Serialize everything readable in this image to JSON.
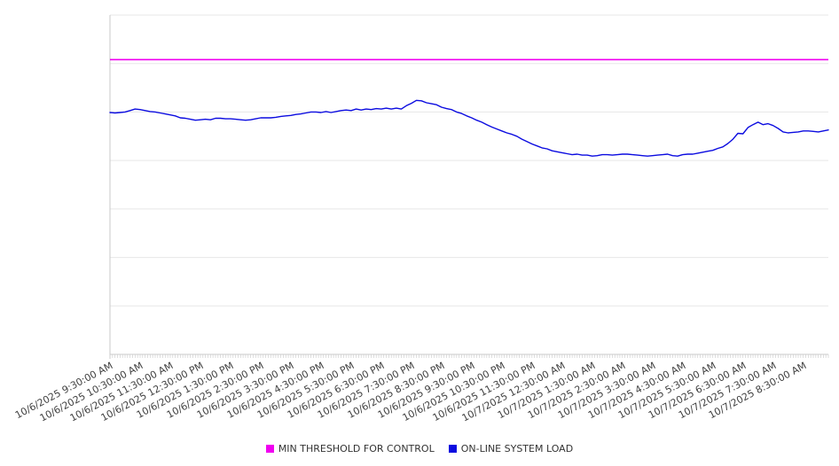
{
  "chart_data": {
    "type": "line",
    "title": "",
    "xlabel": "",
    "ylabel": "",
    "y_axis": {
      "labels_visible": false,
      "min": 0,
      "max": 700,
      "gridline_interval": 100,
      "grid": true
    },
    "x_axis": {
      "tick_labels": [
        "10/6/2025 9:30:00 AM",
        "10/6/2025 10:30:00 AM",
        "10/6/2025 11:30:00 AM",
        "10/6/2025 12:30:00 PM",
        "10/6/2025 1:30:00 PM",
        "10/6/2025 2:30:00 PM",
        "10/6/2025 3:30:00 PM",
        "10/6/2025 4:30:00 PM",
        "10/6/2025 5:30:00 PM",
        "10/6/2025 6:30:00 PM",
        "10/6/2025 7:30:00 PM",
        "10/6/2025 8:30:00 PM",
        "10/6/2025 9:30:00 PM",
        "10/6/2025 10:30:00 PM",
        "10/6/2025 11:30:00 PM",
        "10/7/2025 12:30:00 AM",
        "10/7/2025 1:30:00 AM",
        "10/7/2025 2:30:00 AM",
        "10/7/2025 3:30:00 AM",
        "10/7/2025 4:30:00 AM",
        "10/7/2025 5:30:00 AM",
        "10/7/2025 6:30:00 AM",
        "10/7/2025 7:30:00 AM",
        "10/7/2025 8:30:00 AM"
      ],
      "minor_tick_intervals": 286
    },
    "series": [
      {
        "name": "MIN THRESHOLD FOR CONTROL",
        "type": "constant",
        "color": "#F000F0",
        "value": 608
      },
      {
        "name": "ON-LINE SYSTEM LOAD",
        "type": "line",
        "color": "#0B0BE0",
        "start": "10/6/2025 9:30:00 AM",
        "sample_interval_minutes": 10,
        "values": [
          499,
          498,
          499,
          500,
          503,
          506,
          505,
          503,
          501,
          500,
          498,
          496,
          494,
          492,
          488,
          487,
          485,
          483,
          484,
          485,
          484,
          487,
          487,
          486,
          486,
          485,
          484,
          483,
          484,
          486,
          488,
          488,
          488,
          489,
          491,
          492,
          493,
          495,
          496,
          498,
          500,
          500,
          499,
          501,
          499,
          501,
          503,
          504,
          503,
          506,
          504,
          506,
          505,
          507,
          506,
          508,
          506,
          508,
          506,
          513,
          518,
          524,
          523,
          519,
          517,
          515,
          510,
          507,
          505,
          500,
          497,
          492,
          488,
          483,
          479,
          474,
          469,
          465,
          461,
          457,
          454,
          450,
          444,
          439,
          434,
          430,
          426,
          424,
          420,
          418,
          416,
          414,
          412,
          413,
          411,
          411,
          409,
          410,
          412,
          412,
          411,
          412,
          413,
          413,
          412,
          411,
          410,
          409,
          410,
          411,
          412,
          413,
          410,
          409,
          412,
          413,
          413,
          415,
          417,
          419,
          421,
          425,
          428,
          435,
          444,
          456,
          455,
          468,
          474,
          479,
          474,
          476,
          472,
          466,
          459,
          457,
          458,
          459,
          461,
          461,
          460,
          459,
          461,
          463
        ]
      }
    ],
    "legend_position": "bottom-center",
    "colors": {
      "gridline": "#e7e7e7",
      "axis": "#c9c9c9",
      "minor_tick": "#cfcfcf",
      "x_label_text": "#404040",
      "legend_text": "#333333",
      "background": "#ffffff"
    }
  }
}
